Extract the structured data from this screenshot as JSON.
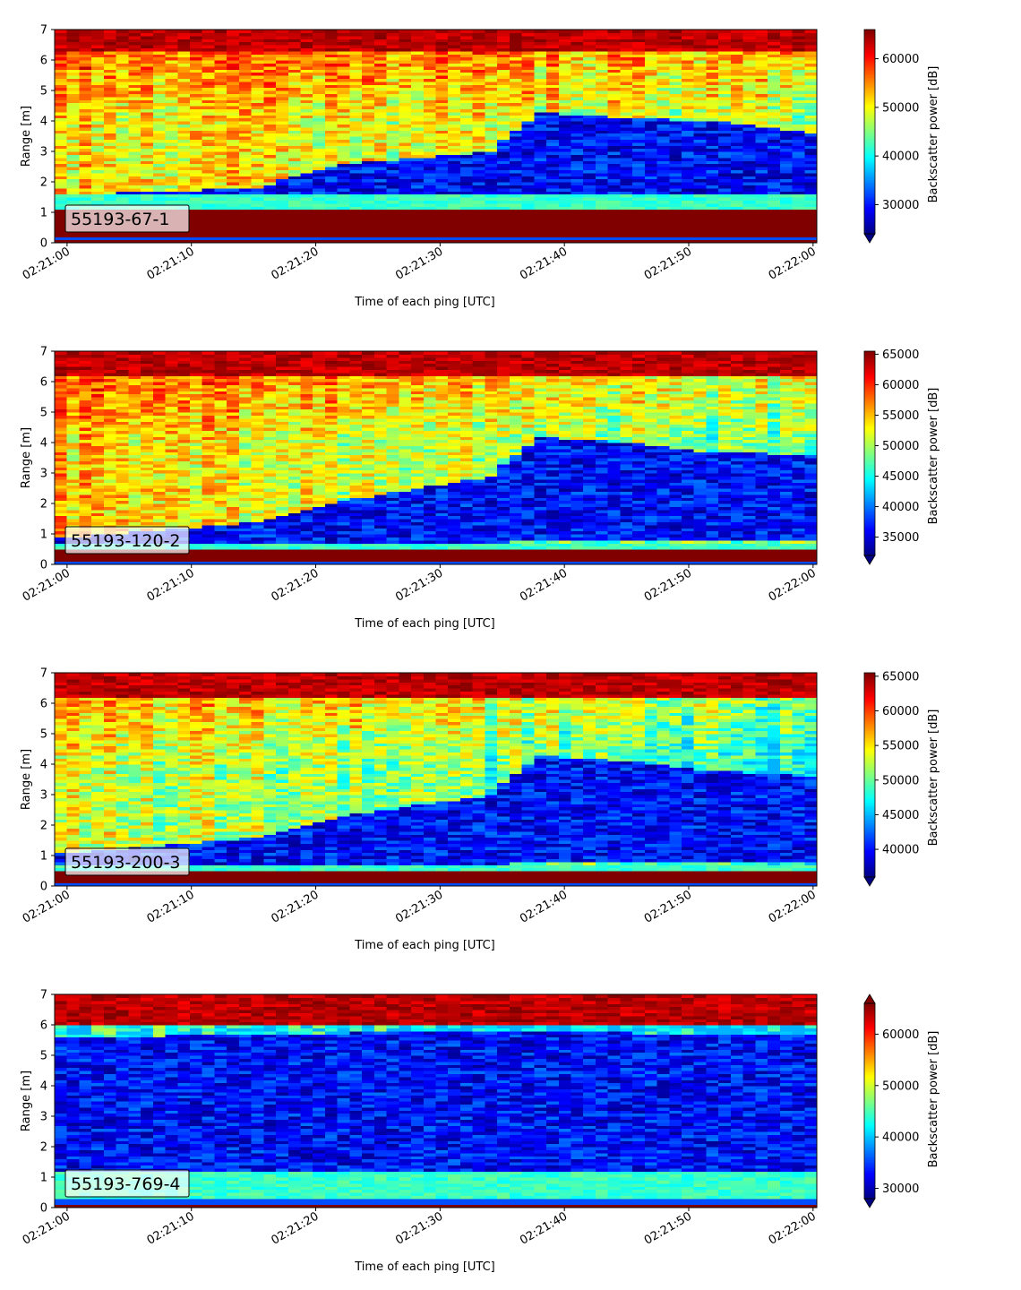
{
  "figure": {
    "xlabel": "Time of each ping [UTC]",
    "ylabel": "Range [m]",
    "colorbar_label": "Backscatter power [dB]",
    "colormap": "jet"
  },
  "chart_data": [
    {
      "type": "heatmap",
      "label": "55193-67-1",
      "xlabel": "Time of each ping [UTC]",
      "ylabel": "Range [m]",
      "x_ticks": [
        "02:21:00",
        "02:21:10",
        "02:21:20",
        "02:21:30",
        "02:21:40",
        "02:21:50",
        "02:22:00"
      ],
      "y_ticks": [
        "0",
        "1",
        "2",
        "3",
        "4",
        "5",
        "6",
        "7"
      ],
      "ylim": [
        0,
        7
      ],
      "xlim_seconds": [
        -1,
        60.3
      ],
      "colorbar": {
        "label": "Backscatter power [dB]",
        "ticks": [
          "30000",
          "40000",
          "50000",
          "60000"
        ],
        "tick_values": [
          30000,
          40000,
          50000,
          60000
        ],
        "range": [
          24000,
          66000
        ],
        "extend": "min"
      },
      "profile": {
        "near_strong_below_m": 1.15,
        "bottom_layer_m": [
          0.1,
          0.2
        ],
        "low_band": [
          {
            "t": 0,
            "lo": 1.5,
            "hi": 1.6
          },
          {
            "t": 15,
            "lo": 1.5,
            "hi": 1.8
          },
          {
            "t": 22,
            "lo": 1.4,
            "hi": 2.6
          },
          {
            "t": 34,
            "lo": 1.4,
            "hi": 3.0
          },
          {
            "t": 38,
            "lo": 1.6,
            "hi": 4.3
          },
          {
            "t": 45,
            "lo": 1.5,
            "hi": 4.1
          },
          {
            "t": 52,
            "lo": 1.5,
            "hi": 4.0
          },
          {
            "t": 60,
            "lo": 1.5,
            "hi": 3.6
          }
        ],
        "cyan_band": [
          1.15,
          1.6
        ],
        "top_red_above_m": 6.3,
        "mid_value_early": 52000,
        "mid_value_late": 47000
      }
    },
    {
      "type": "heatmap",
      "label": "55193-120-2",
      "xlabel": "Time of each ping [UTC]",
      "ylabel": "Range [m]",
      "x_ticks": [
        "02:21:00",
        "02:21:10",
        "02:21:20",
        "02:21:30",
        "02:21:40",
        "02:21:50",
        "02:22:00"
      ],
      "y_ticks": [
        "0",
        "1",
        "2",
        "3",
        "4",
        "5",
        "6",
        "7"
      ],
      "ylim": [
        0,
        7
      ],
      "xlim_seconds": [
        -1,
        60.3
      ],
      "colorbar": {
        "label": "Backscatter power [dB]",
        "ticks": [
          "35000",
          "40000",
          "45000",
          "50000",
          "55000",
          "60000",
          "65000"
        ],
        "tick_values": [
          35000,
          40000,
          45000,
          50000,
          55000,
          60000,
          65000
        ],
        "range": [
          32000,
          65500
        ],
        "extend": "min"
      },
      "profile": {
        "near_strong_below_m": 0.55,
        "bottom_layer_m": [
          0.05,
          0.15
        ],
        "low_band": [
          {
            "t": 0,
            "lo": 0.7,
            "hi": 0.9
          },
          {
            "t": 15,
            "lo": 0.7,
            "hi": 1.4
          },
          {
            "t": 22,
            "lo": 0.7,
            "hi": 2.1
          },
          {
            "t": 34,
            "lo": 0.7,
            "hi": 2.9
          },
          {
            "t": 38,
            "lo": 0.8,
            "hi": 4.2
          },
          {
            "t": 45,
            "lo": 0.8,
            "hi": 4.0
          },
          {
            "t": 52,
            "lo": 0.8,
            "hi": 3.7
          },
          {
            "t": 60,
            "lo": 0.8,
            "hi": 3.6
          }
        ],
        "cyan_band": [
          0.55,
          0.75
        ],
        "top_red_above_m": 6.2,
        "mid_value_early": 55000,
        "mid_value_late": 47000
      }
    },
    {
      "type": "heatmap",
      "label": "55193-200-3",
      "xlabel": "Time of each ping [UTC]",
      "ylabel": "Range [m]",
      "x_ticks": [
        "02:21:00",
        "02:21:10",
        "02:21:20",
        "02:21:30",
        "02:21:40",
        "02:21:50",
        "02:22:00"
      ],
      "y_ticks": [
        "0",
        "1",
        "2",
        "3",
        "4",
        "5",
        "6",
        "7"
      ],
      "ylim": [
        0,
        7
      ],
      "xlim_seconds": [
        -1,
        60.3
      ],
      "colorbar": {
        "label": "Backscatter power [dB]",
        "ticks": [
          "40000",
          "45000",
          "50000",
          "55000",
          "60000",
          "65000"
        ],
        "tick_values": [
          40000,
          45000,
          50000,
          55000,
          60000,
          65000
        ],
        "range": [
          36000,
          65500
        ],
        "extend": "min"
      },
      "profile": {
        "near_strong_below_m": 0.5,
        "bottom_layer_m": [
          0.05,
          0.15
        ],
        "low_band": [
          {
            "t": 0,
            "lo": 0.7,
            "hi": 1.1
          },
          {
            "t": 15,
            "lo": 0.7,
            "hi": 1.6
          },
          {
            "t": 22,
            "lo": 0.7,
            "hi": 2.3
          },
          {
            "t": 34,
            "lo": 0.7,
            "hi": 3.0
          },
          {
            "t": 38,
            "lo": 0.8,
            "hi": 4.3
          },
          {
            "t": 45,
            "lo": 0.8,
            "hi": 4.1
          },
          {
            "t": 52,
            "lo": 0.8,
            "hi": 3.8
          },
          {
            "t": 60,
            "lo": 0.8,
            "hi": 3.6
          }
        ],
        "cyan_band": [
          0.5,
          0.7
        ],
        "top_red_above_m": 6.2,
        "mid_value_early": 54000,
        "mid_value_late": 47000
      }
    },
    {
      "type": "heatmap",
      "label": "55193-769-4",
      "xlabel": "Time of each ping [UTC]",
      "ylabel": "Range [m]",
      "x_ticks": [
        "02:21:00",
        "02:21:10",
        "02:21:20",
        "02:21:30",
        "02:21:40",
        "02:21:50",
        "02:22:00"
      ],
      "y_ticks": [
        "0",
        "1",
        "2",
        "3",
        "4",
        "5",
        "6",
        "7"
      ],
      "ylim": [
        0,
        7
      ],
      "xlim_seconds": [
        -1,
        60.3
      ],
      "colorbar": {
        "label": "Backscatter power [dB]",
        "ticks": [
          "30000",
          "40000",
          "50000",
          "60000"
        ],
        "tick_values": [
          30000,
          40000,
          50000,
          60000
        ],
        "range": [
          28000,
          66000
        ],
        "extend": "both"
      },
      "profile": {
        "near_strong_below_m": 0.3,
        "bottom_layer_m": [
          0.15,
          0.3
        ],
        "low_band": [
          {
            "t": 0,
            "lo": 1.2,
            "hi": 5.6
          },
          {
            "t": 30,
            "lo": 1.0,
            "hi": 5.8
          },
          {
            "t": 60,
            "lo": 1.0,
            "hi": 5.7
          }
        ],
        "cyan_band": [
          0.3,
          1.2
        ],
        "top_red_above_m": 6.0,
        "top_red_line_m": 6.2,
        "mid_value_early": 39000,
        "mid_value_late": 35000
      }
    }
  ]
}
